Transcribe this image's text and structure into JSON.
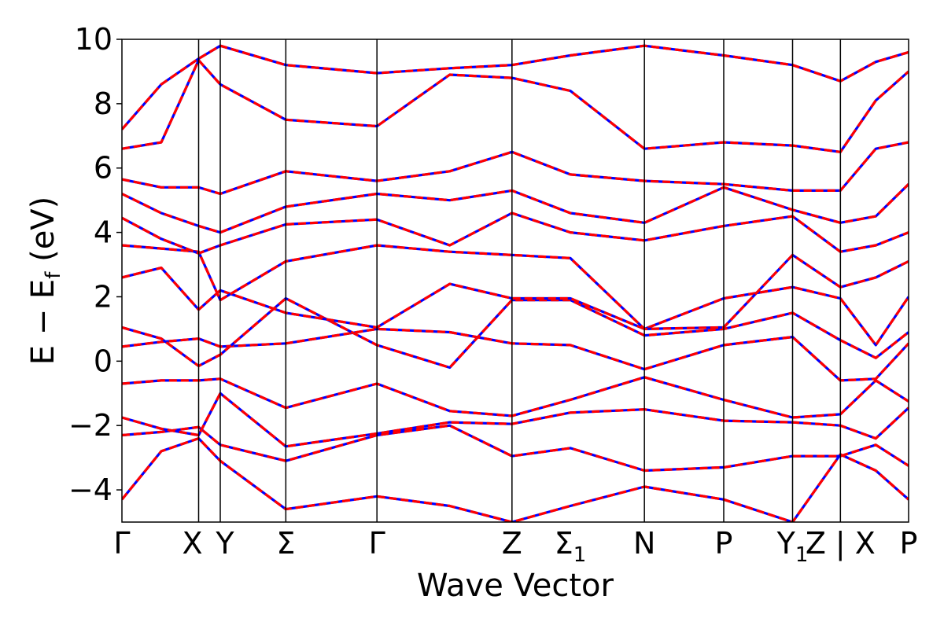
{
  "chart_data": {
    "type": "line",
    "xlabel": "Wave Vector",
    "ylabel": "E − E_f (eV)",
    "ylim": [
      -5,
      10
    ],
    "xlim": [
      0,
      10.96
    ],
    "yticks": [
      -4,
      -2,
      0,
      2,
      4,
      6,
      8,
      10
    ],
    "ytick_labels": [
      "−4",
      "−2",
      "0",
      "2",
      "4",
      "6",
      "8",
      "10"
    ],
    "kpoints": [
      {
        "label": "Γ",
        "x": 0.0,
        "sub": ""
      },
      {
        "label": "X",
        "x": 1.17,
        "sub": ""
      },
      {
        "label": "Y",
        "x": 1.5,
        "sub": ""
      },
      {
        "label": "Σ",
        "x": 2.5,
        "sub": ""
      },
      {
        "label": "Γ",
        "x": 3.89,
        "sub": ""
      },
      {
        "label": "Z",
        "x": 5.95,
        "sub": ""
      },
      {
        "label": "Σ",
        "x": 6.84,
        "sub": "1"
      },
      {
        "label": "N",
        "x": 7.97,
        "sub": ""
      },
      {
        "label": "P",
        "x": 9.18,
        "sub": ""
      },
      {
        "label": "Y",
        "x": 10.23,
        "sub": "1"
      },
      {
        "label": "Z | X",
        "x": 10.96,
        "sub": ""
      },
      {
        "label": "P",
        "x": 12.0,
        "sub": ""
      }
    ],
    "vertical_lines": [
      1.17,
      1.5,
      2.5,
      3.89,
      5.95,
      7.97,
      9.18,
      10.23,
      10.96
    ],
    "series_styles": [
      {
        "color": "#0000ff",
        "dash": "none"
      },
      {
        "color": "#ff0000",
        "dash": "dashed"
      }
    ],
    "bands": [
      {
        "x": [
          0,
          0.6,
          1.17,
          1.5,
          2.5,
          3.89,
          5.0,
          5.95,
          6.84,
          7.97,
          9.18,
          10.23,
          10.96,
          11.5,
          12.0
        ],
        "y": [
          -4.3,
          -2.8,
          -2.4,
          -3.1,
          -4.6,
          -4.2,
          -4.5,
          -5.0,
          -4.5,
          -3.9,
          -4.3,
          -5.0,
          -2.9,
          -3.4,
          -4.3
        ]
      },
      {
        "x": [
          0,
          0.6,
          1.17,
          1.5,
          2.5,
          3.89,
          5.0,
          5.95,
          6.84,
          7.97,
          9.18,
          10.23,
          10.96,
          11.5,
          12.0
        ],
        "y": [
          -2.3,
          -2.2,
          -2.05,
          -2.6,
          -3.1,
          -2.3,
          -2.0,
          -2.95,
          -2.7,
          -3.4,
          -3.3,
          -2.95,
          -2.95,
          -2.6,
          -3.25
        ]
      },
      {
        "x": [
          0,
          0.6,
          1.17,
          1.5,
          2.5,
          3.89,
          5.0,
          5.95,
          6.84,
          7.97,
          9.18,
          10.23,
          10.96,
          11.5,
          12.0
        ],
        "y": [
          -1.75,
          -2.1,
          -2.3,
          -1.0,
          -2.65,
          -2.25,
          -1.9,
          -1.95,
          -1.6,
          -1.5,
          -1.85,
          -1.9,
          -2.0,
          -2.4,
          -1.45
        ]
      },
      {
        "x": [
          0,
          0.6,
          1.17,
          1.5,
          2.5,
          3.89,
          5.0,
          5.95,
          6.84,
          7.97,
          9.18,
          10.23,
          10.96,
          11.5,
          12.0
        ],
        "y": [
          -0.7,
          -0.6,
          -0.6,
          -0.55,
          -1.45,
          -0.7,
          -1.55,
          -1.7,
          -1.2,
          -0.5,
          -1.2,
          -1.75,
          -1.65,
          -0.6,
          -1.25
        ]
      },
      {
        "x": [
          0,
          0.6,
          1.17,
          1.5,
          2.5,
          3.89,
          5.0,
          5.95,
          6.84,
          7.97,
          9.18,
          10.23,
          10.96,
          11.5,
          12.0
        ],
        "y": [
          0.45,
          0.6,
          0.7,
          0.45,
          0.55,
          1.0,
          0.9,
          0.55,
          0.5,
          -0.25,
          0.5,
          0.75,
          -0.6,
          -0.55,
          0.55
        ]
      },
      {
        "x": [
          0,
          0.6,
          1.17,
          1.5,
          2.5,
          3.89,
          5.0,
          5.95,
          6.84,
          7.97,
          9.18,
          10.23,
          10.96,
          11.5,
          12.0
        ],
        "y": [
          1.05,
          0.7,
          -0.15,
          0.2,
          1.95,
          0.5,
          -0.2,
          1.9,
          1.9,
          0.8,
          1.0,
          1.5,
          0.65,
          0.1,
          0.9
        ]
      },
      {
        "x": [
          0,
          0.6,
          1.17,
          1.5,
          2.5,
          3.89,
          5.0,
          5.95,
          6.84,
          7.97,
          9.18,
          10.23,
          10.96,
          11.5,
          12.0
        ],
        "y": [
          2.6,
          2.9,
          1.6,
          2.2,
          1.5,
          1.05,
          2.4,
          1.95,
          1.95,
          1.0,
          1.95,
          2.3,
          1.95,
          0.5,
          2.0
        ]
      },
      {
        "x": [
          0,
          0.6,
          1.17,
          1.5,
          2.5,
          3.89,
          5.0,
          5.95,
          6.84,
          7.97,
          9.18,
          10.23,
          10.96,
          11.5,
          12.0
        ],
        "y": [
          3.6,
          3.5,
          3.4,
          1.9,
          3.1,
          3.6,
          3.4,
          3.3,
          3.2,
          1.0,
          1.05,
          3.3,
          2.3,
          2.6,
          3.1
        ]
      },
      {
        "x": [
          0,
          0.6,
          1.17,
          1.5,
          2.5,
          3.89,
          5.0,
          5.95,
          6.84,
          7.97,
          9.18,
          10.23,
          10.96,
          11.5,
          12.0
        ],
        "y": [
          4.45,
          3.8,
          3.35,
          3.6,
          4.25,
          4.4,
          3.6,
          4.6,
          4.0,
          3.75,
          4.2,
          4.5,
          3.4,
          3.6,
          4.0
        ]
      },
      {
        "x": [
          0,
          0.6,
          1.17,
          1.5,
          2.5,
          3.89,
          5.0,
          5.95,
          6.84,
          7.97,
          9.18,
          10.23,
          10.96,
          11.5,
          12.0
        ],
        "y": [
          5.2,
          4.6,
          4.2,
          4.0,
          4.8,
          5.2,
          5.0,
          5.3,
          4.6,
          4.3,
          5.4,
          4.7,
          4.3,
          4.5,
          5.5
        ]
      },
      {
        "x": [
          0,
          0.6,
          1.17,
          1.5,
          2.5,
          3.89,
          5.0,
          5.95,
          6.84,
          7.97,
          9.18,
          10.23,
          10.96,
          11.5,
          12.0
        ],
        "y": [
          5.65,
          5.4,
          5.4,
          5.2,
          5.9,
          5.6,
          5.9,
          6.5,
          5.8,
          5.6,
          5.5,
          5.3,
          5.3,
          6.6,
          6.8
        ]
      },
      {
        "x": [
          0,
          0.6,
          1.17,
          1.5,
          2.5,
          3.89,
          5.0,
          5.95,
          6.84,
          7.97,
          9.18,
          10.23,
          10.96,
          11.5,
          12.0
        ],
        "y": [
          6.6,
          6.8,
          9.35,
          8.6,
          7.5,
          7.3,
          8.9,
          8.8,
          8.4,
          6.6,
          6.8,
          6.7,
          6.5,
          8.1,
          9.0
        ]
      },
      {
        "x": [
          0,
          0.6,
          1.17,
          1.5,
          2.5,
          3.89,
          5.0,
          5.95,
          6.84,
          7.97,
          9.18,
          10.23,
          10.96,
          11.5,
          12.0
        ],
        "y": [
          7.2,
          8.6,
          9.4,
          9.8,
          9.2,
          8.95,
          9.1,
          9.2,
          9.5,
          9.8,
          9.5,
          9.2,
          8.7,
          9.3,
          9.6
        ]
      }
    ]
  }
}
